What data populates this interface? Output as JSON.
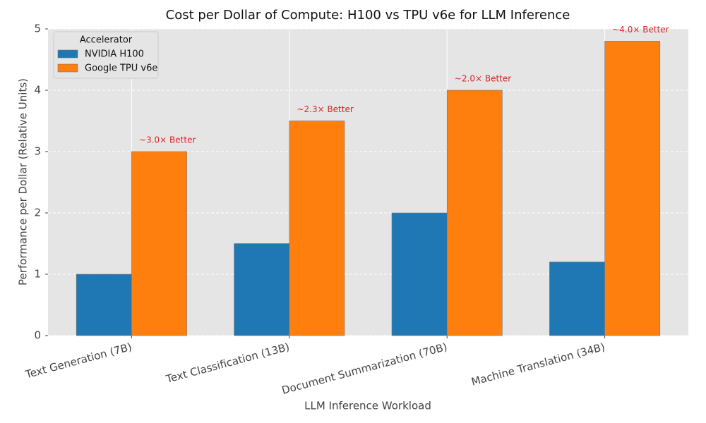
{
  "chart_data": {
    "type": "bar",
    "title": "Cost per Dollar of Compute: H100 vs TPU v6e for LLM Inference",
    "x_label": "LLM Inference Workload",
    "y_label": "Performance per Dollar (Relative Units)",
    "categories": [
      "Text Generation (7B)",
      "Text Classification (13B)",
      "Document Summarization (70B)",
      "Machine Translation (34B)"
    ],
    "series": [
      {
        "name": "NVIDIA H100",
        "color": "#1f77b4",
        "values": [
          1.0,
          1.5,
          2.0,
          1.2
        ]
      },
      {
        "name": "Google TPU v6e",
        "color": "#ff7f0e",
        "values": [
          3.0,
          3.5,
          4.0,
          4.8
        ]
      }
    ],
    "annotations": [
      "~3.0× Better",
      "~2.3× Better",
      "~2.0× Better",
      "~4.0× Better"
    ],
    "annotation_color": "#d62728",
    "legend_title": "Accelerator",
    "legend_position": "upper-left",
    "ylim": [
      0,
      5
    ],
    "yticks": [
      0,
      1,
      2,
      3,
      4,
      5
    ],
    "grid": true
  }
}
